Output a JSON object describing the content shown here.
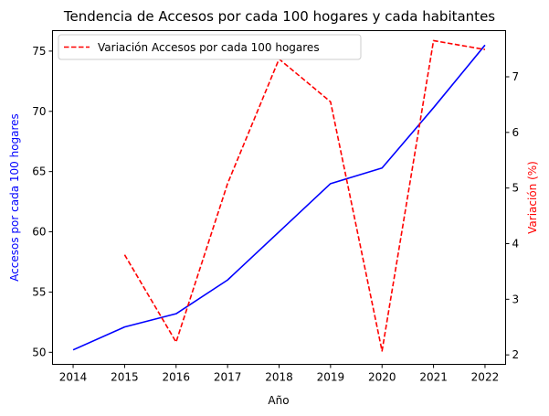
{
  "chart_data": {
    "type": "line",
    "title": "Tendencia de Accesos por cada 100 hogares y cada habitantes",
    "xlabel": "Año",
    "ylabel_left": "Accesos por cada 100 hogares",
    "ylabel_right": "Variación (%)",
    "x": [
      2014,
      2015,
      2016,
      2017,
      2018,
      2019,
      2020,
      2021,
      2022
    ],
    "x_ticks": [
      "2014",
      "2015",
      "2016",
      "2017",
      "2018",
      "2019",
      "2020",
      "2021",
      "2022"
    ],
    "y_left_ticks": [
      "50",
      "55",
      "60",
      "65",
      "70",
      "75"
    ],
    "y_right_ticks": [
      "2",
      "3",
      "4",
      "5",
      "6",
      "7"
    ],
    "ylim_left": [
      49.0,
      76.7
    ],
    "ylim_right": [
      1.83,
      7.83
    ],
    "legend_position": "upper-left",
    "grid": false,
    "series": [
      {
        "axis": "left",
        "color": "#0000ff",
        "style": "solid",
        "x": [
          2014,
          2015,
          2016,
          2017,
          2018,
          2019,
          2020,
          2021,
          2022
        ],
        "values": [
          50.2,
          52.1,
          53.2,
          56.0,
          60.0,
          64.0,
          65.3,
          70.3,
          75.5
        ]
      },
      {
        "name": "Variación Accesos por cada 100 hogares",
        "axis": "right",
        "color": "#ff0000",
        "style": "dashed",
        "x": [
          2015,
          2016,
          2017,
          2018,
          2019,
          2020,
          2021,
          2022
        ],
        "values": [
          3.8,
          2.23,
          5.08,
          7.32,
          6.55,
          2.07,
          7.65,
          7.49
        ]
      }
    ]
  }
}
